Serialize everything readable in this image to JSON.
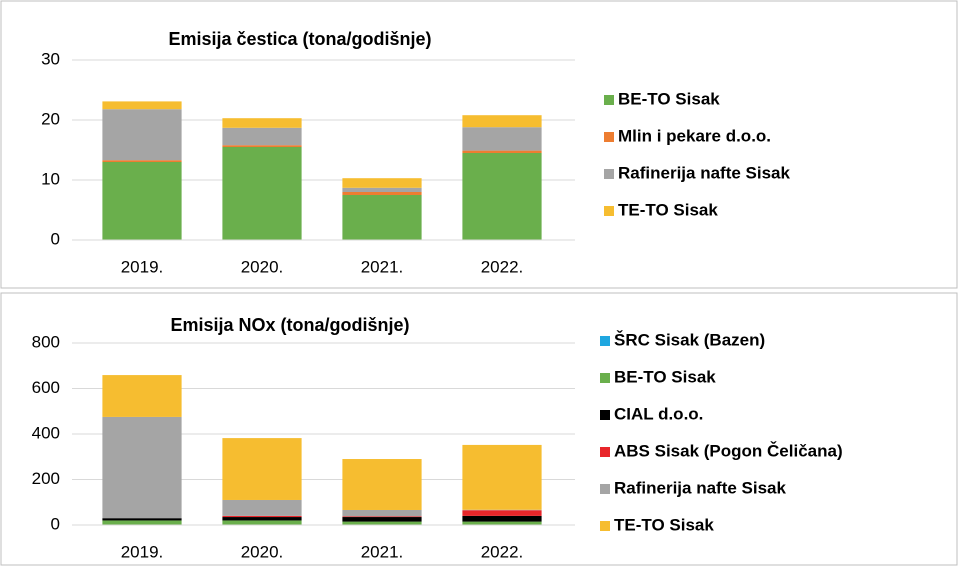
{
  "chart_data": [
    {
      "type": "bar",
      "stacked": true,
      "title": "Emisija čestica (tona/godišnje)",
      "categories": [
        "2019.",
        "2020.",
        "2021.",
        "2022."
      ],
      "series": [
        {
          "name": "BE-TO Sisak",
          "color": "#6aaf4c",
          "values": [
            13,
            15.5,
            7.5,
            14.5
          ]
        },
        {
          "name": "Mlin i pekare d.o.o.",
          "color": "#ed7d31",
          "values": [
            0.3,
            0.3,
            0.5,
            0.4
          ]
        },
        {
          "name": "Rafinerija nafte Sisak",
          "color": "#a5a5a5",
          "values": [
            8.5,
            2.9,
            0.7,
            3.9
          ]
        },
        {
          "name": "TE-TO Sisak",
          "color": "#f6bd30",
          "values": [
            1.3,
            1.6,
            1.6,
            2
          ]
        }
      ],
      "ylim": [
        0,
        30
      ],
      "yticks": [
        0,
        10,
        20,
        30
      ],
      "grid": true,
      "legend": "right"
    },
    {
      "type": "bar",
      "stacked": true,
      "title": "Emisija NOx (tona/godišnje)",
      "categories": [
        "2019.",
        "2020.",
        "2021.",
        "2022."
      ],
      "series": [
        {
          "name": "ŠRC Sisak (Bazen)",
          "color": "#1fa7e0",
          "values": [
            0,
            0,
            0,
            0
          ]
        },
        {
          "name": "BE-TO Sisak",
          "color": "#6aaf4c",
          "values": [
            20,
            20,
            15,
            15
          ]
        },
        {
          "name": "CIAL d.o.o.",
          "color": "#000000",
          "values": [
            10,
            15,
            20,
            25
          ]
        },
        {
          "name": "ABS Sisak (Pogon Čeličana)",
          "color": "#e8262a",
          "values": [
            0,
            5,
            3,
            25
          ]
        },
        {
          "name": "Rafinerija nafte Sisak",
          "color": "#a5a5a5",
          "values": [
            445,
            70,
            28,
            2
          ]
        },
        {
          "name": "TE-TO Sisak",
          "color": "#f6bd30",
          "values": [
            184,
            272,
            224,
            285
          ]
        }
      ],
      "ylim": [
        0,
        800
      ],
      "yticks": [
        0,
        200,
        400,
        600,
        800
      ],
      "grid": true,
      "legend": "right"
    }
  ]
}
